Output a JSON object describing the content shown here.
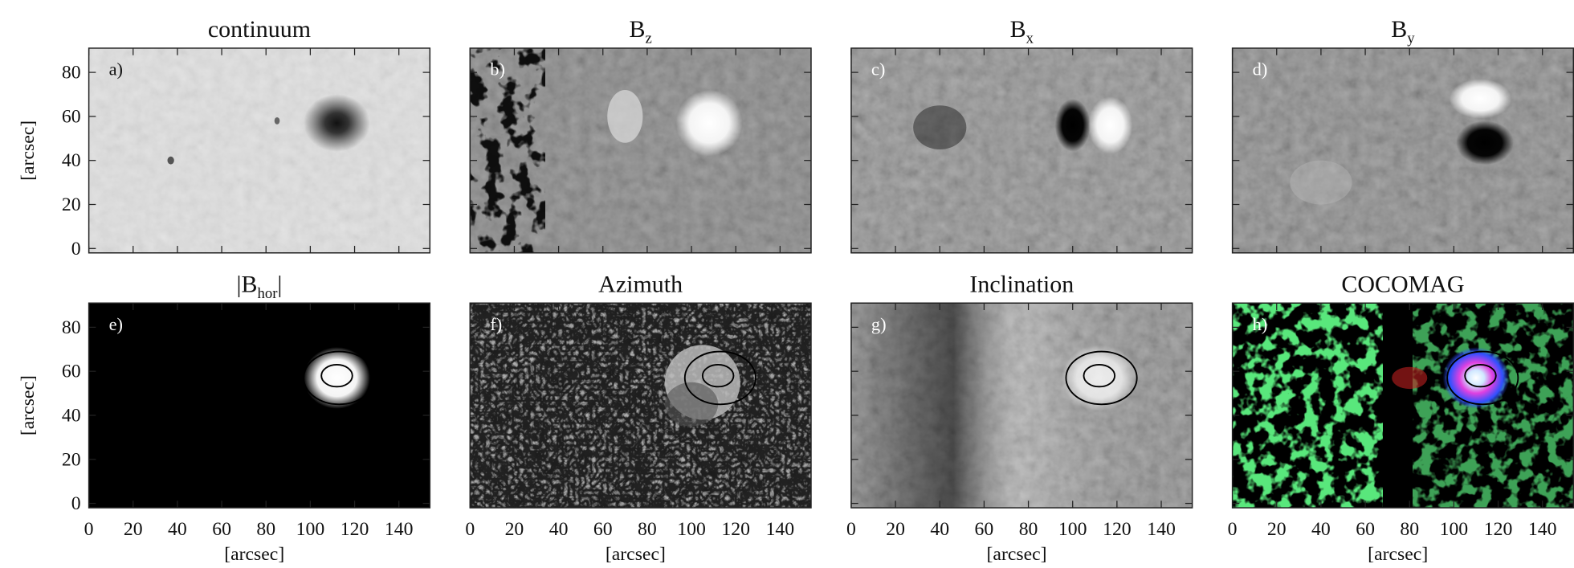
{
  "figure": {
    "panels": [
      {
        "label": "a)",
        "title": [
          {
            "text": "continuum"
          }
        ]
      },
      {
        "label": "b)",
        "title": [
          {
            "text": "B"
          },
          {
            "text": "z",
            "sub": true
          }
        ]
      },
      {
        "label": "c)",
        "title": [
          {
            "text": "B"
          },
          {
            "text": "x",
            "sub": true
          }
        ]
      },
      {
        "label": "d)",
        "title": [
          {
            "text": "B"
          },
          {
            "text": "y",
            "sub": true
          }
        ]
      },
      {
        "label": "e)",
        "title": [
          {
            "text": "|B"
          },
          {
            "text": "hor",
            "sub": true
          },
          {
            "text": "|"
          }
        ]
      },
      {
        "label": "f)",
        "title": [
          {
            "text": "Azimuth"
          }
        ]
      },
      {
        "label": "g)",
        "title": [
          {
            "text": "Inclination"
          }
        ]
      },
      {
        "label": "h)",
        "title": [
          {
            "text": "COCOMAG"
          }
        ]
      }
    ],
    "axes": {
      "xlim": [
        0,
        154
      ],
      "ylim": [
        -2,
        91
      ],
      "xticks": [
        0,
        20,
        40,
        60,
        80,
        100,
        120,
        140
      ],
      "yticks": [
        0,
        20,
        40,
        60,
        80
      ],
      "xlabel": "[arcsec]",
      "ylabel": "[arcsec]"
    }
  }
}
